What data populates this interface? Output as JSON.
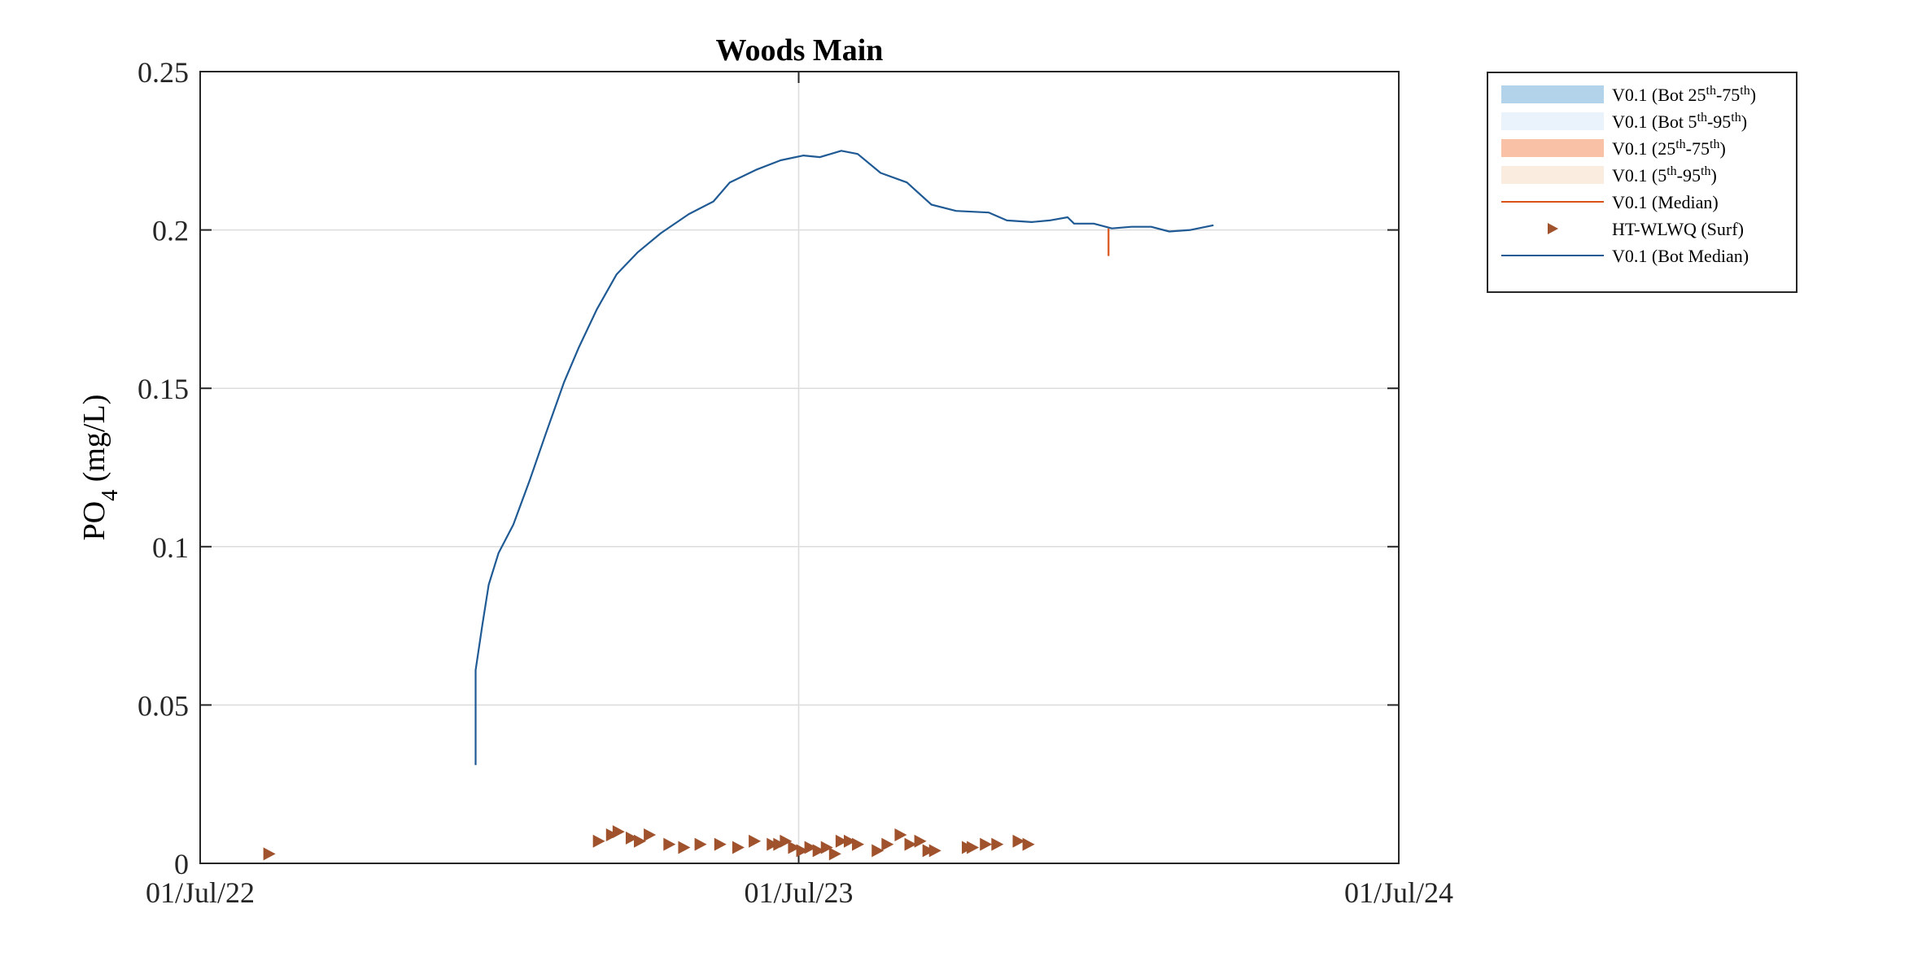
{
  "chart_data": {
    "type": "line",
    "title": "Woods Main",
    "ylabel_main": "PO",
    "ylabel_sub": "4",
    "ylabel_unit": " (mg/L)",
    "xlim": [
      "2022-07-01",
      "2024-07-01"
    ],
    "ylim": [
      0,
      0.25
    ],
    "grid": true,
    "legend_position": "outside-top-right",
    "x_ticks": [
      {
        "date": "2022-07-01",
        "label": "01/Jul/22"
      },
      {
        "date": "2023-07-01",
        "label": "01/Jul/23"
      },
      {
        "date": "2024-07-01",
        "label": "01/Jul/24"
      }
    ],
    "y_ticks": [
      {
        "value": 0,
        "label": "0"
      },
      {
        "value": 0.05,
        "label": "0.05"
      },
      {
        "value": 0.1,
        "label": "0.1"
      },
      {
        "value": 0.15,
        "label": "0.15"
      },
      {
        "value": 0.2,
        "label": "0.2"
      },
      {
        "value": 0.25,
        "label": "0.25"
      }
    ],
    "legend": [
      {
        "kind": "patch",
        "color": "#b3d3ea",
        "base": "V0.1 (Bot 25",
        "sup1": "th",
        "mid": "-75",
        "sup2": "th",
        "end": ")"
      },
      {
        "kind": "patch",
        "color": "#eaf3fb",
        "base": "V0.1 (Bot 5",
        "sup1": "th",
        "mid": "-95",
        "sup2": "th",
        "end": ")"
      },
      {
        "kind": "patch",
        "color": "#f9c2a6",
        "base": "V0.1 (25",
        "sup1": "th",
        "mid": "-75",
        "sup2": "th",
        "end": ")"
      },
      {
        "kind": "patch",
        "color": "#fbece0",
        "base": "V0.1 (5",
        "sup1": "th",
        "mid": "-95",
        "sup2": "th",
        "end": ")"
      },
      {
        "kind": "line",
        "color": "#d95319",
        "base": "V0.1 (Median)",
        "sup1": "",
        "mid": "",
        "sup2": "",
        "end": ""
      },
      {
        "kind": "marker",
        "color": "#a0522d",
        "base": "HT-WLWQ (Surf)",
        "sup1": "",
        "mid": "",
        "sup2": "",
        "end": ""
      },
      {
        "kind": "line",
        "color": "#1f5a94",
        "base": "V0.1 (Bot Median)",
        "sup1": "",
        "mid": "",
        "sup2": "",
        "end": ""
      }
    ],
    "series": [
      {
        "name": "V0.1 (Bot Median)",
        "color": "#1f5a94",
        "points": [
          [
            "2022-12-16",
            0.031
          ],
          [
            "2022-12-16",
            0.061
          ],
          [
            "2022-12-20",
            0.075
          ],
          [
            "2022-12-24",
            0.088
          ],
          [
            "2022-12-30",
            0.098
          ],
          [
            "2023-01-08",
            0.107
          ],
          [
            "2023-01-18",
            0.121
          ],
          [
            "2023-01-28",
            0.136
          ],
          [
            "2023-02-08",
            0.152
          ],
          [
            "2023-02-17",
            0.163
          ],
          [
            "2023-02-28",
            0.175
          ],
          [
            "2023-03-12",
            0.186
          ],
          [
            "2023-03-25",
            0.193
          ],
          [
            "2023-04-08",
            0.199
          ],
          [
            "2023-04-25",
            0.205
          ],
          [
            "2023-05-10",
            0.209
          ],
          [
            "2023-05-20",
            0.215
          ],
          [
            "2023-06-05",
            0.219
          ],
          [
            "2023-06-20",
            0.222
          ],
          [
            "2023-07-04",
            0.2235
          ],
          [
            "2023-07-14",
            0.223
          ],
          [
            "2023-07-27",
            0.225
          ],
          [
            "2023-08-06",
            0.224
          ],
          [
            "2023-08-20",
            0.218
          ],
          [
            "2023-09-05",
            0.215
          ],
          [
            "2023-09-20",
            0.208
          ],
          [
            "2023-10-05",
            0.206
          ],
          [
            "2023-10-25",
            0.2055
          ],
          [
            "2023-11-05",
            0.203
          ],
          [
            "2023-11-20",
            0.2025
          ],
          [
            "2023-12-01",
            0.203
          ],
          [
            "2023-12-12",
            0.204
          ],
          [
            "2023-12-16",
            0.202
          ],
          [
            "2023-12-28",
            0.202
          ],
          [
            "2024-01-08",
            0.2005
          ],
          [
            "2024-01-20",
            0.201
          ],
          [
            "2024-02-01",
            0.201
          ],
          [
            "2024-02-12",
            0.1995
          ],
          [
            "2024-02-25",
            0.2
          ],
          [
            "2024-03-10",
            0.2015
          ]
        ]
      },
      {
        "name": "V0.1 (Median)",
        "color": "#d95319",
        "points": [
          [
            "2024-01-06",
            0.2005
          ],
          [
            "2024-01-06",
            0.192
          ],
          [
            "2024-01-06",
            0.2005
          ]
        ]
      }
    ],
    "markers": {
      "name": "HT-WLWQ (Surf)",
      "color": "#a0522d",
      "points": [
        [
          "2022-08-12",
          0.003
        ],
        [
          "2023-03-01",
          0.007
        ],
        [
          "2023-03-09",
          0.009
        ],
        [
          "2023-03-13",
          0.01
        ],
        [
          "2023-03-21",
          0.008
        ],
        [
          "2023-03-26",
          0.007
        ],
        [
          "2023-04-01",
          0.009
        ],
        [
          "2023-04-13",
          0.006
        ],
        [
          "2023-04-22",
          0.005
        ],
        [
          "2023-05-02",
          0.006
        ],
        [
          "2023-05-14",
          0.006
        ],
        [
          "2023-05-25",
          0.005
        ],
        [
          "2023-06-04",
          0.007
        ],
        [
          "2023-06-15",
          0.006
        ],
        [
          "2023-06-19",
          0.006
        ],
        [
          "2023-06-23",
          0.007
        ],
        [
          "2023-06-28",
          0.005
        ],
        [
          "2023-07-03",
          0.004
        ],
        [
          "2023-07-08",
          0.005
        ],
        [
          "2023-07-13",
          0.004
        ],
        [
          "2023-07-18",
          0.005
        ],
        [
          "2023-07-23",
          0.003
        ],
        [
          "2023-07-27",
          0.007
        ],
        [
          "2023-08-01",
          0.007
        ],
        [
          "2023-08-06",
          0.006
        ],
        [
          "2023-08-18",
          0.004
        ],
        [
          "2023-08-24",
          0.006
        ],
        [
          "2023-09-01",
          0.009
        ],
        [
          "2023-09-07",
          0.006
        ],
        [
          "2023-09-13",
          0.007
        ],
        [
          "2023-09-18",
          0.004
        ],
        [
          "2023-09-22",
          0.004
        ],
        [
          "2023-10-12",
          0.005
        ],
        [
          "2023-10-15",
          0.005
        ],
        [
          "2023-10-23",
          0.006
        ],
        [
          "2023-10-30",
          0.006
        ],
        [
          "2023-11-12",
          0.007
        ],
        [
          "2023-11-18",
          0.006
        ]
      ]
    }
  }
}
